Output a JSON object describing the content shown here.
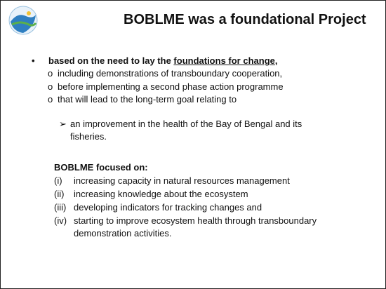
{
  "title": "BOBLME was a foundational Project",
  "bullet": {
    "prefix": "based on the need to lay the ",
    "underlined": "foundations for change",
    "suffix": ",",
    "items": [
      {
        "text": "including demonstrations of transboundary cooperation,"
      },
      {
        "text": "before implementing a second phase action programme"
      },
      {
        "text": "that will lead to the long-term goal relating to",
        "subitem": "an improvement in the health of the Bay of Bengal and its fisheries."
      }
    ]
  },
  "focus": {
    "heading": "BOBLME focused on:",
    "items": [
      {
        "marker": "(i)",
        "text": "increasing capacity in natural resources management"
      },
      {
        "marker": "(ii)",
        "text": "increasing knowledge about the ecosystem"
      },
      {
        "marker": "(iii)",
        "text": "developing indicators for tracking changes and"
      },
      {
        "marker": "(iv)",
        "text": "starting to improve ecosystem health through transboundary demonstration activities."
      }
    ]
  }
}
